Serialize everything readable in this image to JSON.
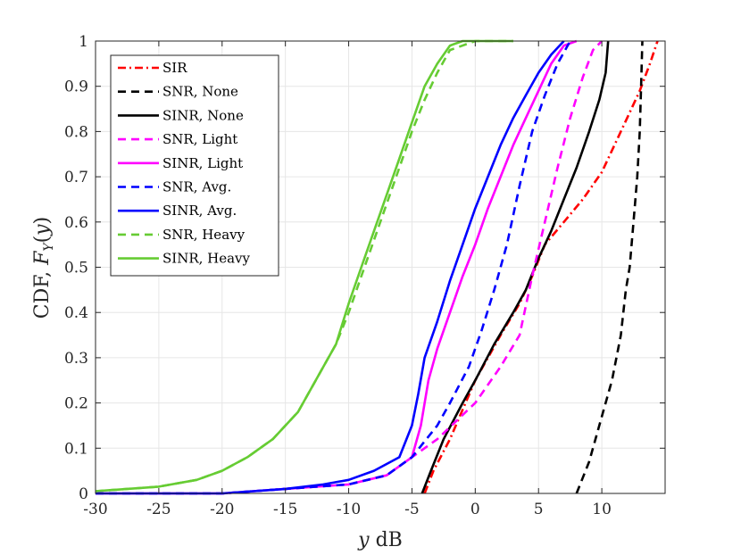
{
  "chart_data": {
    "type": "line",
    "title": "",
    "xlabel": "y dB",
    "ylabel": "CDF, F_Y(y)",
    "xlim": [
      -30,
      15
    ],
    "ylim": [
      0,
      1
    ],
    "grid": true,
    "legend_position": "top-left",
    "x_ticks": [
      -30,
      -25,
      -20,
      -15,
      -10,
      -5,
      0,
      5,
      10
    ],
    "x_tick_labels": [
      "-30",
      "-25",
      "-20",
      "-15",
      "-10",
      "-5",
      "0",
      "5",
      "10"
    ],
    "y_ticks": [
      0,
      0.1,
      0.2,
      0.3,
      0.4,
      0.5,
      0.6,
      0.7,
      0.8,
      0.9,
      1
    ],
    "y_tick_labels": [
      "0",
      "0.1",
      "0.2",
      "0.3",
      "0.4",
      "0.5",
      "0.6",
      "0.7",
      "0.8",
      "0.9",
      "1"
    ],
    "series": [
      {
        "name": "SIR",
        "color": "#ff0000",
        "dash": "dashdot",
        "points": [
          [
            -4,
            0
          ],
          [
            -3.3,
            0.05
          ],
          [
            -2,
            0.12
          ],
          [
            0,
            0.25
          ],
          [
            2,
            0.35
          ],
          [
            3.5,
            0.42
          ],
          [
            4.5,
            0.48
          ],
          [
            5.5,
            0.55
          ],
          [
            7,
            0.6
          ],
          [
            8.5,
            0.65
          ],
          [
            10,
            0.71
          ],
          [
            11,
            0.77
          ],
          [
            12,
            0.83
          ],
          [
            13,
            0.89
          ],
          [
            13.8,
            0.95
          ],
          [
            14.4,
            1
          ]
        ]
      },
      {
        "name": "SNR, None",
        "color": "#000000",
        "dash": "dashed",
        "points": [
          [
            8,
            0
          ],
          [
            9,
            0.07
          ],
          [
            10,
            0.17
          ],
          [
            10.8,
            0.25
          ],
          [
            11.5,
            0.35
          ],
          [
            11.9,
            0.45
          ],
          [
            12.2,
            0.5
          ],
          [
            12.5,
            0.6
          ],
          [
            12.8,
            0.7
          ],
          [
            13,
            0.8
          ],
          [
            13.1,
            0.9
          ],
          [
            13.2,
            1
          ]
        ]
      },
      {
        "name": "SINR, None",
        "color": "#000000",
        "dash": "solid",
        "points": [
          [
            -4.2,
            0
          ],
          [
            -3.5,
            0.05
          ],
          [
            -2.5,
            0.12
          ],
          [
            -1,
            0.2
          ],
          [
            0,
            0.25
          ],
          [
            1.5,
            0.33
          ],
          [
            3,
            0.4
          ],
          [
            4,
            0.45
          ],
          [
            5,
            0.52
          ],
          [
            6,
            0.58
          ],
          [
            7,
            0.65
          ],
          [
            8,
            0.72
          ],
          [
            9,
            0.8
          ],
          [
            9.8,
            0.87
          ],
          [
            10.3,
            0.93
          ],
          [
            10.5,
            1
          ]
        ]
      },
      {
        "name": "SNR, Light",
        "color": "#ff00ff",
        "dash": "dashed",
        "points": [
          [
            -30,
            0
          ],
          [
            -20,
            0
          ],
          [
            -15,
            0.01
          ],
          [
            -10,
            0.02
          ],
          [
            -7,
            0.04
          ],
          [
            -5,
            0.08
          ],
          [
            -3,
            0.12
          ],
          [
            0,
            0.2
          ],
          [
            2,
            0.28
          ],
          [
            3.5,
            0.35
          ],
          [
            4.5,
            0.48
          ],
          [
            5.5,
            0.6
          ],
          [
            6.5,
            0.72
          ],
          [
            7.5,
            0.83
          ],
          [
            8.5,
            0.92
          ],
          [
            9.3,
            0.98
          ],
          [
            10,
            1
          ]
        ]
      },
      {
        "name": "SINR, Light",
        "color": "#ff00ff",
        "dash": "solid",
        "points": [
          [
            -30,
            0
          ],
          [
            -20,
            0
          ],
          [
            -15,
            0.01
          ],
          [
            -10,
            0.02
          ],
          [
            -7,
            0.04
          ],
          [
            -5,
            0.08
          ],
          [
            -4.3,
            0.15
          ],
          [
            -3.7,
            0.25
          ],
          [
            -3,
            0.32
          ],
          [
            -2,
            0.4
          ],
          [
            -1,
            0.48
          ],
          [
            0,
            0.55
          ],
          [
            1,
            0.63
          ],
          [
            2,
            0.7
          ],
          [
            3,
            0.77
          ],
          [
            4,
            0.83
          ],
          [
            5,
            0.89
          ],
          [
            6,
            0.95
          ],
          [
            7,
            0.99
          ],
          [
            8,
            1
          ]
        ]
      },
      {
        "name": "SNR, Avg.",
        "color": "#0000ff",
        "dash": "dashed",
        "points": [
          [
            -30,
            0
          ],
          [
            -20,
            0
          ],
          [
            -15,
            0.01
          ],
          [
            -10,
            0.02
          ],
          [
            -7,
            0.04
          ],
          [
            -5,
            0.08
          ],
          [
            -3,
            0.15
          ],
          [
            -2,
            0.2
          ],
          [
            -0.5,
            0.28
          ],
          [
            0.5,
            0.36
          ],
          [
            1.5,
            0.45
          ],
          [
            2.5,
            0.55
          ],
          [
            3.5,
            0.68
          ],
          [
            4.5,
            0.8
          ],
          [
            5.5,
            0.88
          ],
          [
            6.5,
            0.95
          ],
          [
            7.5,
            1
          ]
        ]
      },
      {
        "name": "SINR, Avg.",
        "color": "#0000ff",
        "dash": "solid",
        "points": [
          [
            -30,
            0
          ],
          [
            -20,
            0
          ],
          [
            -15,
            0.01
          ],
          [
            -12,
            0.02
          ],
          [
            -10,
            0.03
          ],
          [
            -8,
            0.05
          ],
          [
            -6,
            0.08
          ],
          [
            -5,
            0.15
          ],
          [
            -4.5,
            0.22
          ],
          [
            -4,
            0.3
          ],
          [
            -3,
            0.38
          ],
          [
            -2,
            0.47
          ],
          [
            -1,
            0.55
          ],
          [
            0,
            0.63
          ],
          [
            1,
            0.7
          ],
          [
            2,
            0.77
          ],
          [
            3,
            0.83
          ],
          [
            4,
            0.88
          ],
          [
            5,
            0.93
          ],
          [
            6,
            0.97
          ],
          [
            7,
            1
          ]
        ]
      },
      {
        "name": "SNR, Heavy",
        "color": "#66cc33",
        "dash": "dashed",
        "points": [
          [
            -30,
            0.005
          ],
          [
            -25,
            0.015
          ],
          [
            -22,
            0.03
          ],
          [
            -20,
            0.05
          ],
          [
            -18,
            0.08
          ],
          [
            -16,
            0.12
          ],
          [
            -14,
            0.18
          ],
          [
            -13,
            0.23
          ],
          [
            -12,
            0.28
          ],
          [
            -11,
            0.33
          ],
          [
            -10,
            0.4
          ],
          [
            -9,
            0.48
          ],
          [
            -8,
            0.56
          ],
          [
            -7,
            0.64
          ],
          [
            -6,
            0.72
          ],
          [
            -5,
            0.8
          ],
          [
            -4,
            0.87
          ],
          [
            -3,
            0.93
          ],
          [
            -2,
            0.98
          ],
          [
            0,
            1
          ],
          [
            3,
            1
          ]
        ]
      },
      {
        "name": "SINR, Heavy",
        "color": "#66cc33",
        "dash": "solid",
        "points": [
          [
            -30,
            0.005
          ],
          [
            -25,
            0.015
          ],
          [
            -22,
            0.03
          ],
          [
            -20,
            0.05
          ],
          [
            -18,
            0.08
          ],
          [
            -16,
            0.12
          ],
          [
            -14,
            0.18
          ],
          [
            -13,
            0.23
          ],
          [
            -12,
            0.28
          ],
          [
            -11,
            0.33
          ],
          [
            -10,
            0.42
          ],
          [
            -9,
            0.5
          ],
          [
            -8,
            0.58
          ],
          [
            -7,
            0.66
          ],
          [
            -6,
            0.74
          ],
          [
            -5,
            0.82
          ],
          [
            -4,
            0.9
          ],
          [
            -3,
            0.95
          ],
          [
            -2,
            0.99
          ],
          [
            -1,
            1
          ],
          [
            3,
            1
          ]
        ]
      }
    ]
  }
}
